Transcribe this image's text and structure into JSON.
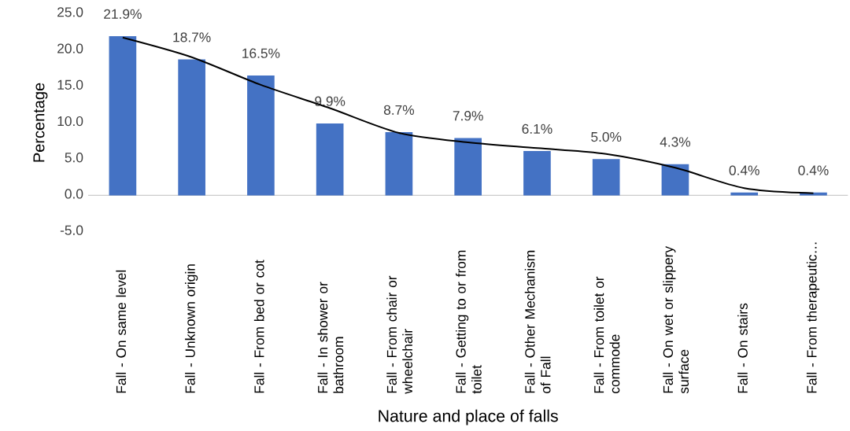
{
  "chart_data": {
    "type": "bar",
    "xlabel": "Nature and place of falls",
    "ylabel": "Percentage",
    "categories": [
      "Fall - On same level",
      "Fall - Unknown origin",
      "Fall - From bed or cot",
      "Fall - In shower or bathroom",
      "Fall - From chair or wheelchair",
      "Fall - Getting to or from toilet",
      "Fall - Other Mechanism of Fall",
      "Fall - From toilet or commode",
      "Fall - On wet or slippery surface",
      "Fall - On stairs",
      "Fall - From therapeutic…"
    ],
    "series": [
      {
        "color": "#4472c4",
        "values": [
          21.9,
          18.7,
          16.5,
          9.9,
          8.7,
          7.9,
          6.1,
          5.0,
          4.3,
          0.4,
          0.4
        ],
        "value_labels": [
          "21.9%",
          "18.7%",
          "16.5%",
          "9.9%",
          "8.7%",
          "7.9%",
          "6.1%",
          "5.0%",
          "4.3%",
          "0.4%",
          "0.4%"
        ]
      },
      {
        "type": "line",
        "color": "#000000",
        "values": [
          21.7,
          19.0,
          15.2,
          12.0,
          8.6,
          7.3,
          6.5,
          5.7,
          3.8,
          1.0,
          0.3
        ]
      }
    ],
    "ylim": [
      -5,
      25
    ],
    "yticks": [
      {
        "value": -5,
        "label": "-5.0"
      },
      {
        "value": 0,
        "label": "0.0"
      },
      {
        "value": 5,
        "label": "5.0"
      },
      {
        "value": 10,
        "label": "10.0"
      },
      {
        "value": 15,
        "label": "15.0"
      },
      {
        "value": 20,
        "label": "20.0"
      },
      {
        "value": 25,
        "label": "25.0"
      }
    ]
  }
}
